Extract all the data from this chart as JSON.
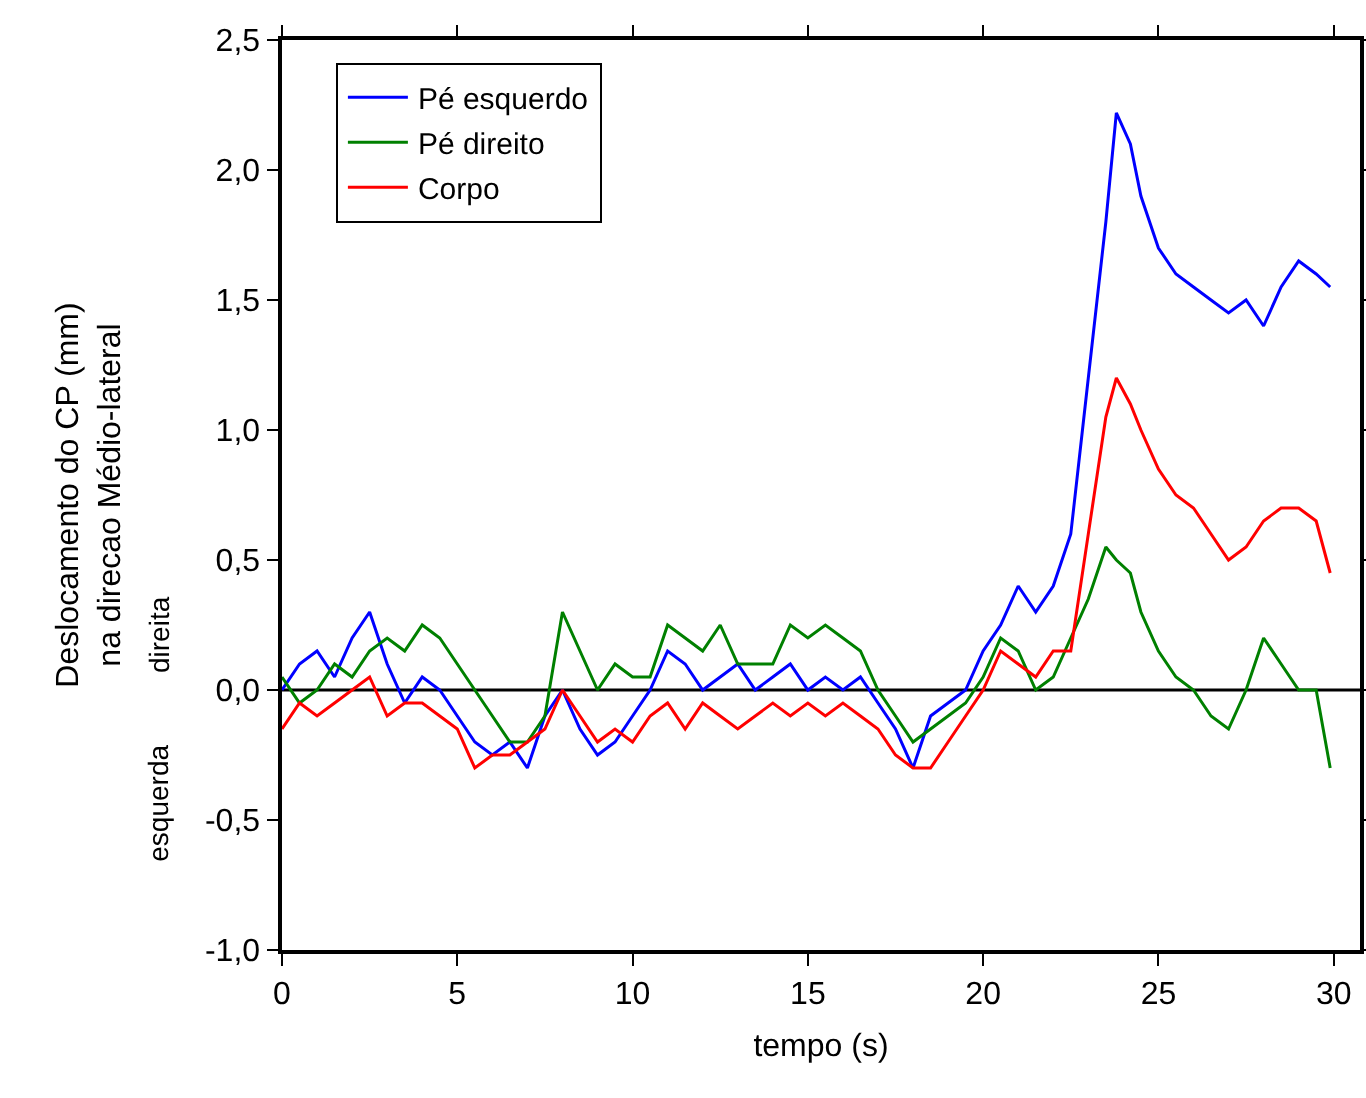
{
  "chart_data": {
    "type": "line",
    "xlabel": "tempo (s)",
    "ylabel": "Deslocamento do CP (mm)\nna direcao Médio-lateral",
    "annotations": [
      "direita",
      "esquerda"
    ],
    "x": [
      0,
      0.5,
      1,
      1.5,
      2,
      2.5,
      3,
      3.5,
      4,
      4.5,
      5,
      5.5,
      6,
      6.5,
      7,
      7.5,
      8,
      8.5,
      9,
      9.5,
      10,
      10.5,
      11,
      11.5,
      12,
      12.5,
      13,
      13.5,
      14,
      14.5,
      15,
      15.5,
      16,
      16.5,
      17,
      17.5,
      18,
      18.5,
      19,
      19.5,
      20,
      20.5,
      21,
      21.5,
      22,
      22.5,
      23,
      23.5,
      23.8,
      24.2,
      24.5,
      25,
      25.5,
      26,
      26.5,
      27,
      27.5,
      28,
      28.5,
      29,
      29.5,
      29.9
    ],
    "series": [
      {
        "name": "Pé esquerdo",
        "color": "#0000ff",
        "values": [
          0,
          0.1,
          0.15,
          0.05,
          0.2,
          0.3,
          0.1,
          -0.05,
          0.05,
          0,
          -0.1,
          -0.2,
          -0.25,
          -0.2,
          -0.3,
          -0.1,
          0,
          -0.15,
          -0.25,
          -0.2,
          -0.1,
          0,
          0.15,
          0.1,
          0,
          0.05,
          0.1,
          0,
          0.05,
          0.1,
          0,
          0.05,
          0,
          0.05,
          -0.05,
          -0.15,
          -0.3,
          -0.1,
          -0.05,
          0,
          0.15,
          0.25,
          0.4,
          0.3,
          0.4,
          0.6,
          1.2,
          1.8,
          2.22,
          2.1,
          1.9,
          1.7,
          1.6,
          1.55,
          1.5,
          1.45,
          1.5,
          1.4,
          1.55,
          1.65,
          1.6,
          1.55
        ]
      },
      {
        "name": "Pé direito",
        "color": "#008000",
        "values": [
          0.05,
          -0.05,
          0,
          0.1,
          0.05,
          0.15,
          0.2,
          0.15,
          0.25,
          0.2,
          0.1,
          0,
          -0.1,
          -0.2,
          -0.2,
          -0.1,
          0.3,
          0.15,
          0,
          0.1,
          0.05,
          0.05,
          0.25,
          0.2,
          0.15,
          0.25,
          0.1,
          0.1,
          0.1,
          0.25,
          0.2,
          0.25,
          0.2,
          0.15,
          0,
          -0.1,
          -0.2,
          -0.15,
          -0.1,
          -0.05,
          0.05,
          0.2,
          0.15,
          0,
          0.05,
          0.2,
          0.35,
          0.55,
          0.5,
          0.45,
          0.3,
          0.15,
          0.05,
          0,
          -0.1,
          -0.15,
          0,
          0.2,
          0.1,
          0,
          0,
          -0.3
        ]
      },
      {
        "name": "Corpo",
        "color": "#ff0000",
        "values": [
          -0.15,
          -0.05,
          -0.1,
          -0.05,
          0,
          0.05,
          -0.1,
          -0.05,
          -0.05,
          -0.1,
          -0.15,
          -0.3,
          -0.25,
          -0.25,
          -0.2,
          -0.15,
          0,
          -0.1,
          -0.2,
          -0.15,
          -0.2,
          -0.1,
          -0.05,
          -0.15,
          -0.05,
          -0.1,
          -0.15,
          -0.1,
          -0.05,
          -0.1,
          -0.05,
          -0.1,
          -0.05,
          -0.1,
          -0.15,
          -0.25,
          -0.3,
          -0.3,
          -0.2,
          -0.1,
          0,
          0.15,
          0.1,
          0.05,
          0.15,
          0.15,
          0.6,
          1.05,
          1.2,
          1.1,
          1,
          0.85,
          0.75,
          0.7,
          0.6,
          0.5,
          0.55,
          0.65,
          0.7,
          0.7,
          0.65,
          0.45
        ]
      }
    ],
    "xlim": [
      0,
      30.75
    ],
    "xticks": [
      0,
      5,
      10,
      15,
      20,
      25,
      30
    ],
    "ylim": [
      -1,
      2.5
    ],
    "yticks": [
      {
        "value": -1,
        "label": "-1,0"
      },
      {
        "value": -0.5,
        "label": "-0,5"
      },
      {
        "value": 0,
        "label": "0,0"
      },
      {
        "value": 0.5,
        "label": "0,5"
      },
      {
        "value": 1,
        "label": "1,0"
      },
      {
        "value": 1.5,
        "label": "1,5"
      },
      {
        "value": 2,
        "label": "2,0"
      },
      {
        "value": 2.5,
        "label": "2,5"
      }
    ],
    "ref_lines": [
      {
        "axis": "y",
        "value": 0,
        "color": "#000000"
      }
    ],
    "grid": false,
    "legend": "top left",
    "marker": "none",
    "line_style": "solid"
  }
}
